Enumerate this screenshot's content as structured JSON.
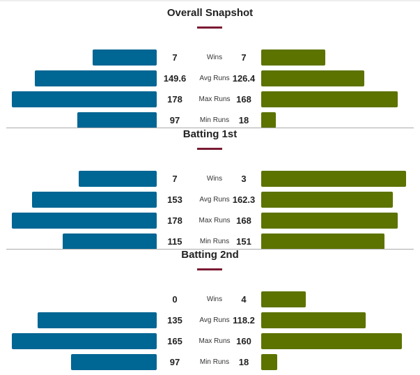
{
  "colors": {
    "left": "#006694",
    "right": "#5c7300",
    "accent": "#7a1a33"
  },
  "chart_data": [
    {
      "type": "bar",
      "title": "Overall Snapshot",
      "categories": [
        "Wins",
        "Avg Runs",
        "Max Runs",
        "Min Runs"
      ],
      "series": [
        {
          "name": "left",
          "values": [
            "7",
            "149.6",
            "178",
            "97"
          ],
          "fill": [
            0.44,
            0.84,
            1.0,
            0.55
          ]
        },
        {
          "name": "right",
          "values": [
            "7",
            "126.4",
            "168",
            "18"
          ],
          "fill": [
            0.44,
            0.71,
            0.94,
            0.1
          ]
        }
      ]
    },
    {
      "type": "bar",
      "title": "Batting 1st",
      "categories": [
        "Wins",
        "Avg Runs",
        "Max Runs",
        "Min Runs"
      ],
      "series": [
        {
          "name": "left",
          "values": [
            "7",
            "153",
            "178",
            "115"
          ],
          "fill": [
            0.54,
            0.86,
            1.0,
            0.65
          ]
        },
        {
          "name": "right",
          "values": [
            "3",
            "162.3",
            "168",
            "151"
          ],
          "fill": [
            1.0,
            0.91,
            0.94,
            0.85
          ]
        }
      ]
    },
    {
      "type": "bar",
      "title": "Batting 2nd",
      "categories": [
        "Wins",
        "Avg Runs",
        "Max Runs",
        "Min Runs"
      ],
      "series": [
        {
          "name": "left",
          "values": [
            "0",
            "135",
            "165",
            "97"
          ],
          "fill": [
            0,
            0.82,
            1.0,
            0.59
          ]
        },
        {
          "name": "right",
          "values": [
            "4",
            "118.2",
            "160",
            "18"
          ],
          "fill": [
            0.31,
            0.72,
            0.97,
            0.11
          ]
        }
      ]
    }
  ]
}
